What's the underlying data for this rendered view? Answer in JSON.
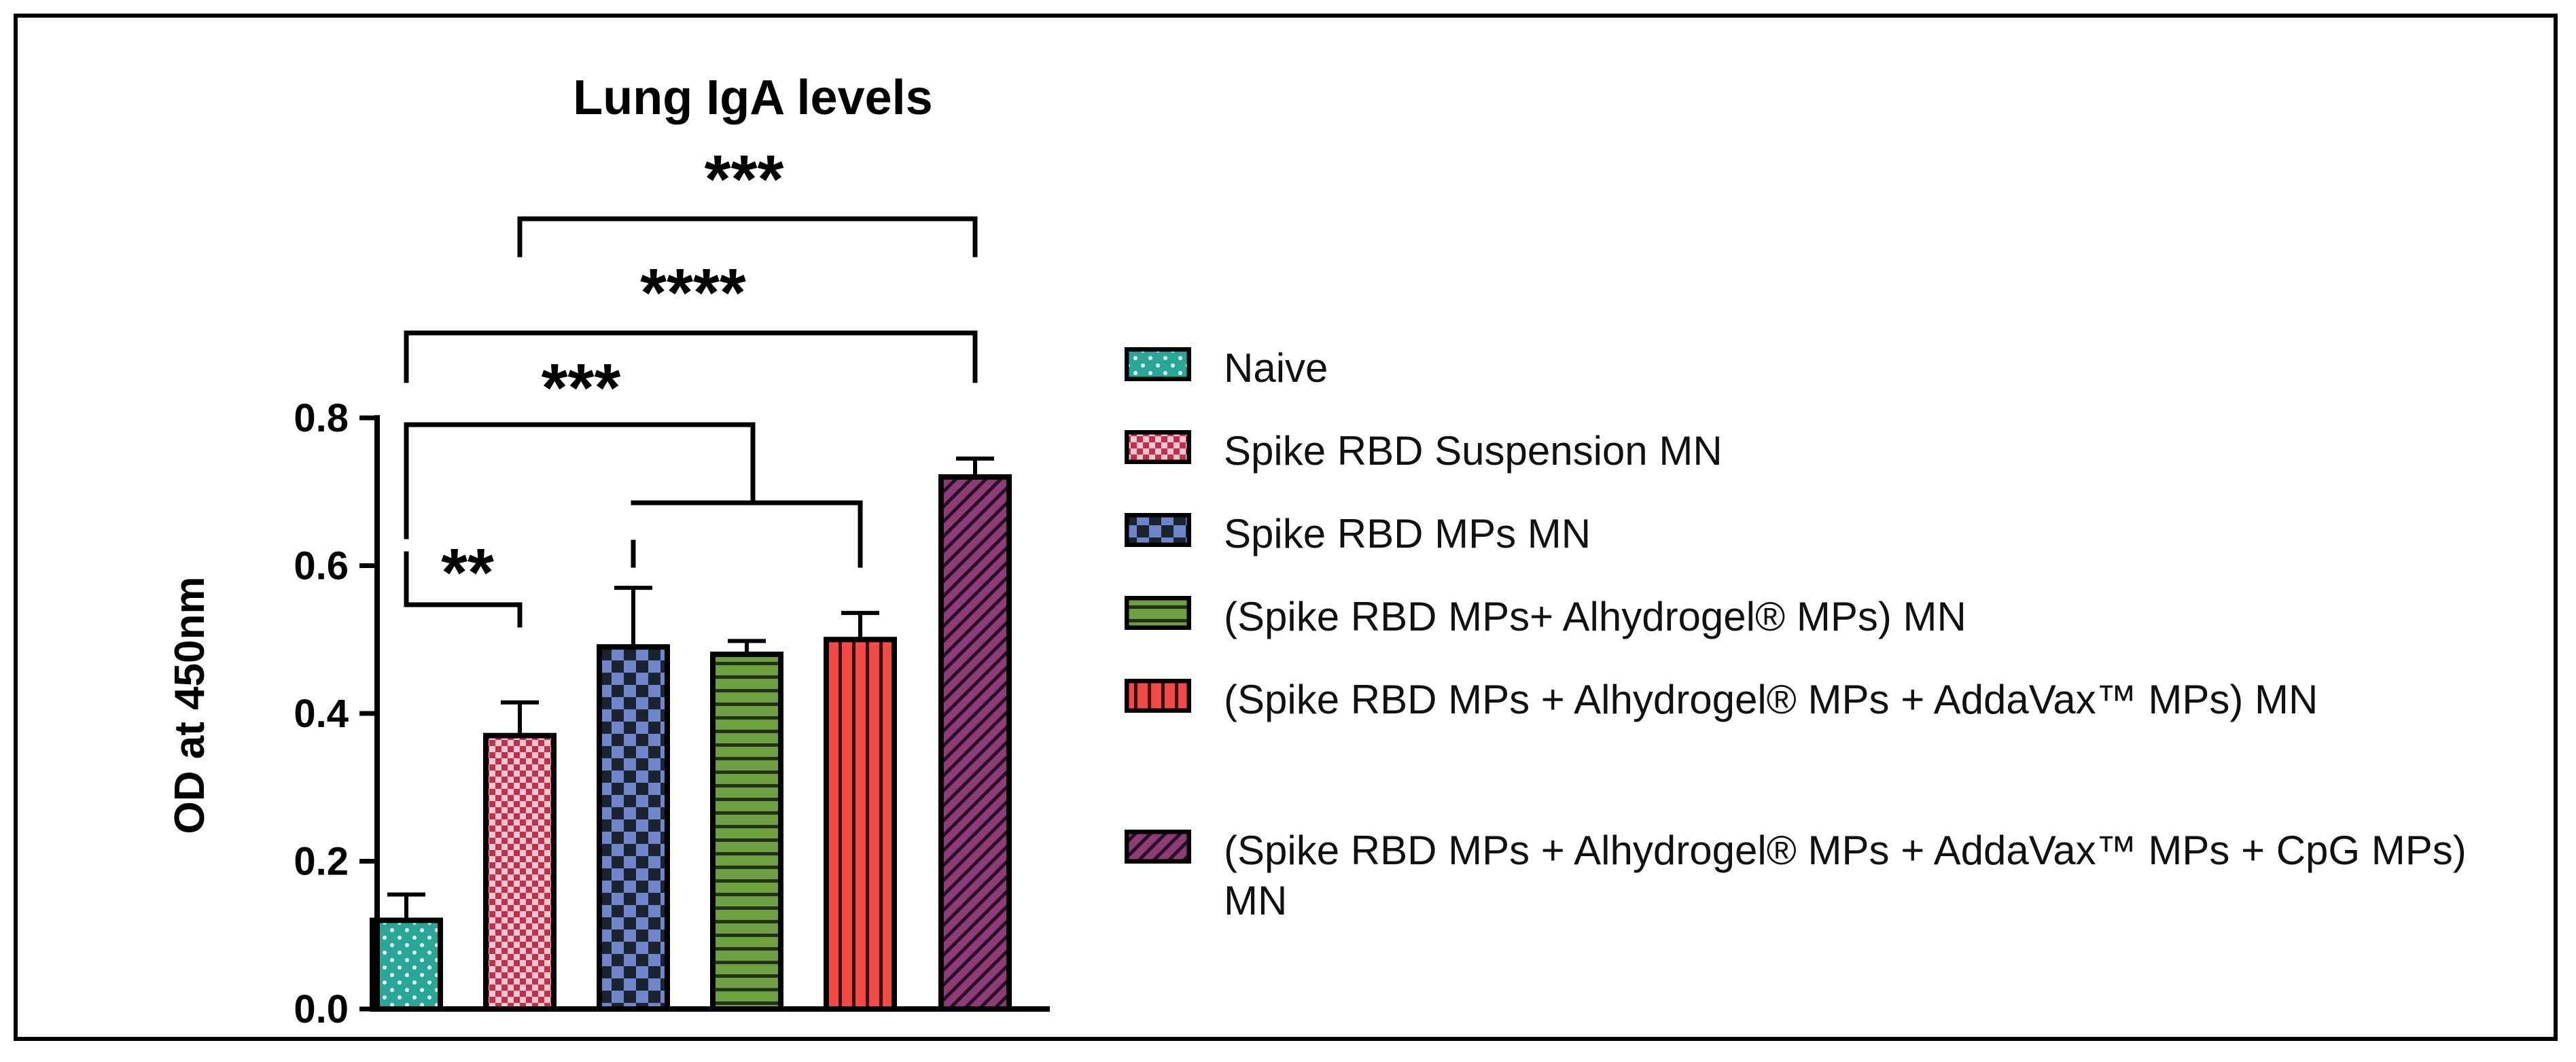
{
  "chart_data": {
    "type": "bar",
    "title": "Lung IgA levels",
    "ylabel": "OD at 450nm",
    "xlabel": "",
    "ylim": [
      0,
      0.8
    ],
    "yticks": [
      "0.0",
      "0.2",
      "0.4",
      "0.6",
      "0.8"
    ],
    "categories": [
      "Naive",
      "Spike RBD Suspension MN",
      "Spike RBD MPs MN",
      "(Spike RBD MPs+ Alhydrogel® MPs) MN",
      "(Spike RBD MPs + Alhydrogel® MPs + AddaVax™ MPs) MN",
      "(Spike RBD MPs + Alhydrogel® MPs + AddaVax™ MPs + CpG MPs) MN"
    ],
    "values": [
      0.12,
      0.37,
      0.49,
      0.48,
      0.5,
      0.72
    ],
    "errors": [
      0.035,
      0.045,
      0.08,
      0.018,
      0.036,
      0.025
    ],
    "colors": [
      "#2aa59a",
      "#c0304a",
      "#6f85c9",
      "#6ea041",
      "#f24b47",
      "#8c3a78"
    ],
    "patterns": [
      "dots",
      "checker-small",
      "checker-large",
      "horizontal",
      "vertical",
      "diagonal"
    ],
    "significance": [
      {
        "label": "**",
        "from": 0,
        "to": [
          1
        ]
      },
      {
        "label": "***",
        "from": 0,
        "to": [
          2,
          3,
          4
        ]
      },
      {
        "label": "****",
        "from": 0,
        "to": [
          5
        ]
      },
      {
        "label": "***",
        "from": 1,
        "to": [
          5
        ]
      }
    ],
    "legend": {
      "position": "right",
      "entries": [
        "Naive",
        "Spike RBD Suspension MN",
        "Spike RBD MPs MN",
        "(Spike RBD MPs+ Alhydrogel® MPs) MN",
        "(Spike RBD MPs + Alhydrogel® MPs + AddaVax™ MPs) MN",
        "(Spike RBD MPs + Alhydrogel® MPs + AddaVax™ MPs + CpG MPs) MN"
      ]
    }
  }
}
